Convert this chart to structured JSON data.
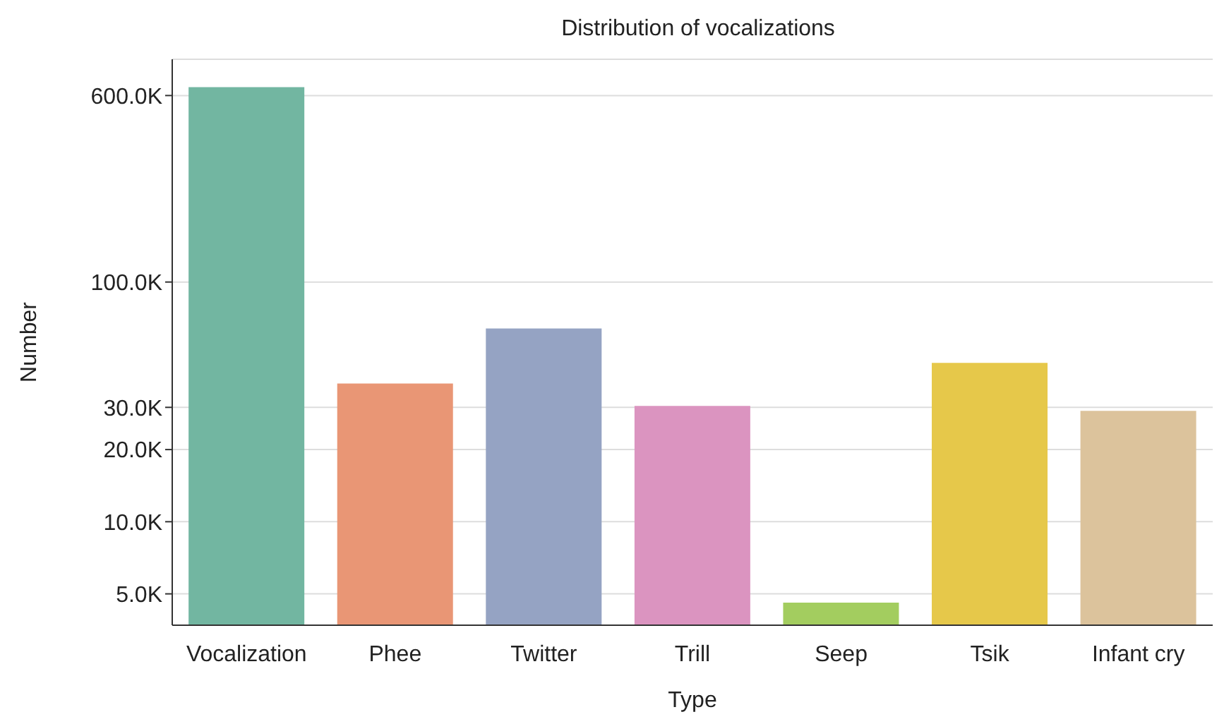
{
  "chart_data": {
    "type": "bar",
    "title": "Distribution of vocalizations",
    "xlabel": "Type",
    "ylabel": "Number",
    "categories": [
      "Vocalization",
      "Phee",
      "Twitter",
      "Trill",
      "Seep",
      "Tsik",
      "Infant cry"
    ],
    "values": [
      650000,
      37700,
      64000,
      30400,
      4600,
      46000,
      29000
    ],
    "colors": [
      "#72b6a1",
      "#e99675",
      "#95a3c3",
      "#db94c0",
      "#a3cd5f",
      "#e6c84a",
      "#dcc39c"
    ],
    "log": "y",
    "ylim": [
      3700,
      850000
    ],
    "yticks": [
      {
        "value": 5000,
        "label": "5.0K"
      },
      {
        "value": 10000,
        "label": "10.0K"
      },
      {
        "value": 20000,
        "label": "20.0K"
      },
      {
        "value": 30000,
        "label": "30.0K"
      },
      {
        "value": 100000,
        "label": "100.0K"
      },
      {
        "value": 600000,
        "label": "600.0K"
      }
    ],
    "grid": "y"
  }
}
